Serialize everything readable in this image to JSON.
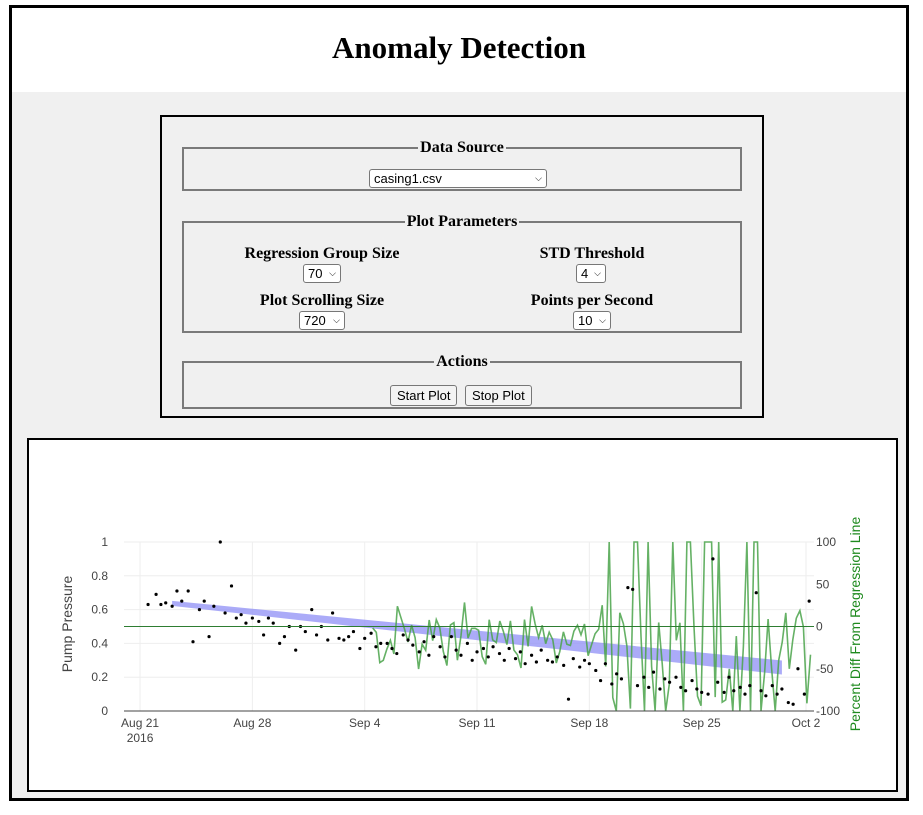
{
  "header": {
    "title": "Anomaly Detection"
  },
  "data_source": {
    "legend": "Data Source",
    "file_selected": "casing1.csv"
  },
  "plot_parameters": {
    "legend": "Plot Parameters",
    "regression_group_size": {
      "label": "Regression Group Size",
      "value": "70"
    },
    "std_threshold": {
      "label": "STD Threshold",
      "value": "4"
    },
    "plot_scrolling_size": {
      "label": "Plot Scrolling Size",
      "value": "720"
    },
    "points_per_second": {
      "label": "Points per Second",
      "value": "10"
    }
  },
  "actions": {
    "legend": "Actions",
    "start_label": "Start Plot",
    "stop_label": "Stop Plot"
  },
  "colors": {
    "points": "#000000",
    "regression_band": "#8f8ff5",
    "percent_diff_line": "#4aa34a",
    "zero_line": "#2e7d32",
    "right_axis_label": "#1e8a1e"
  },
  "chart_data": {
    "type": "scatter",
    "title": "",
    "ylabel": "Pump Pressure",
    "y2label": "Percent Diff From Regression Line",
    "xticks": [
      "Aug 21",
      "Aug 28",
      "Sep 4",
      "Sep 11",
      "Sep 18",
      "Sep 25",
      "Oct 2"
    ],
    "xtick_year": "2016",
    "xlim": [
      "2016-08-20",
      "2016-10-03"
    ],
    "ylim": [
      0,
      1
    ],
    "yticks": [
      "0",
      "0.2",
      "0.4",
      "0.6",
      "0.8",
      "1"
    ],
    "y2lim": [
      -100,
      100
    ],
    "y2ticks": [
      "-100",
      "-50",
      "0",
      "50",
      "100"
    ],
    "grid": true,
    "series": [
      {
        "kind": "points",
        "values_x_days_from_aug20": [
          1.5,
          2,
          2.3,
          2.6,
          3,
          3.3,
          3.6,
          4,
          4.3,
          4.7,
          5,
          5.3,
          5.6,
          6,
          6.3,
          6.7,
          7,
          7.3,
          7.6,
          8,
          8.4,
          8.7,
          9,
          9.3,
          9.7,
          10,
          10.3,
          10.7,
          11,
          11.3,
          11.7,
          12,
          12.3,
          12.7,
          13,
          13.4,
          13.7,
          14,
          14.3,
          14.7,
          15,
          15.4,
          15.7,
          16,
          16.4,
          16.7,
          17,
          17.4,
          17.7,
          18,
          18.4,
          18.7,
          19,
          19.3,
          19.7,
          20,
          20.4,
          20.7,
          21,
          21.4,
          21.7,
          22,
          22.4,
          22.7,
          23,
          23.4,
          23.7,
          24,
          24.4,
          24.7,
          25,
          25.4,
          25.7,
          26,
          26.4,
          26.7,
          27,
          27.4,
          27.7,
          28,
          28.4,
          28.7,
          29,
          29.4,
          29.7,
          30,
          30.4,
          30.7,
          31,
          31.4,
          31.7,
          32,
          32.4,
          32.7,
          33,
          33.4,
          33.7,
          34,
          34.4,
          34.7,
          35,
          35.4,
          35.7,
          36,
          36.4,
          36.7,
          37,
          37.4,
          37.7,
          38,
          38.4,
          38.7,
          39,
          39.4,
          39.7,
          40,
          40.4,
          40.7,
          41,
          41.4,
          41.7,
          42,
          42.4,
          42.7
        ],
        "values_y": [
          0.63,
          0.69,
          0.63,
          0.64,
          0.62,
          0.71,
          0.65,
          0.71,
          0.41,
          0.6,
          0.65,
          0.44,
          0.62,
          1.0,
          0.58,
          0.74,
          0.55,
          0.57,
          0.52,
          0.55,
          0.53,
          0.45,
          0.55,
          0.52,
          0.4,
          0.44,
          0.5,
          0.36,
          0.5,
          0.47,
          0.6,
          0.45,
          0.5,
          0.42,
          0.58,
          0.43,
          0.42,
          0.44,
          0.47,
          0.37,
          0.43,
          0.46,
          0.38,
          0.4,
          0.4,
          0.37,
          0.34,
          0.45,
          0.42,
          0.39,
          0.35,
          0.41,
          0.33,
          0.44,
          0.38,
          0.32,
          0.44,
          0.36,
          0.33,
          0.4,
          0.3,
          0.35,
          0.37,
          0.32,
          0.38,
          0.34,
          0.3,
          0.37,
          0.31,
          0.35,
          0.28,
          0.33,
          0.29,
          0.36,
          0.3,
          0.29,
          0.32,
          0.27,
          0.07,
          0.31,
          0.26,
          0.3,
          0.28,
          0.24,
          0.18,
          0.28,
          0.16,
          0.22,
          0.19,
          0.73,
          0.72,
          0.15,
          0.2,
          0.14,
          0.23,
          0.13,
          0.19,
          0.17,
          0.2,
          0.14,
          0.12,
          0.18,
          0.13,
          0.11,
          0.1,
          0.9,
          0.17,
          0.11,
          0.2,
          0.12,
          0.14,
          0.1,
          0.15,
          0.7,
          0.12,
          0.09,
          0.15,
          0.1,
          0.13,
          0.05,
          0.04,
          0.25,
          0.1,
          0.65
        ]
      },
      {
        "kind": "regression_band",
        "values_y_start": 0.64,
        "values_y_end": 0.24
      },
      {
        "kind": "percent_diff_line",
        "axis": "y2",
        "start_day": 15.5
      }
    ]
  }
}
